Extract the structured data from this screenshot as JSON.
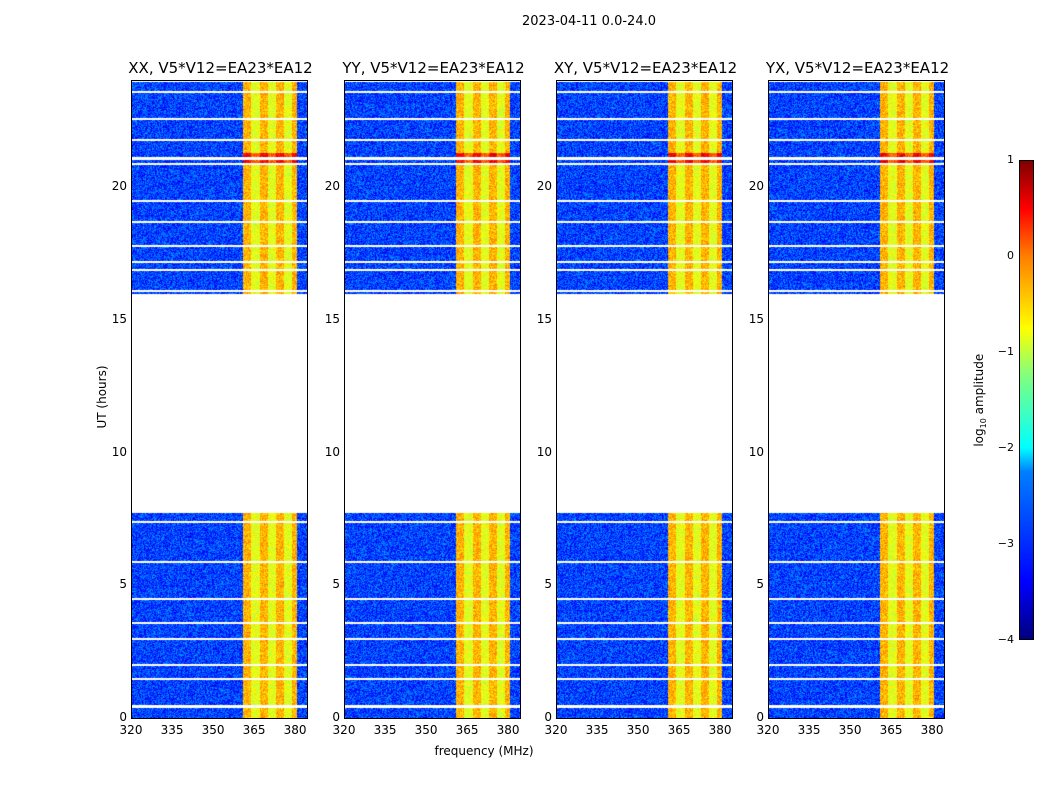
{
  "suptitle": "2023-04-11 0.0-24.0",
  "chart_data": {
    "type": "heatmap",
    "title": "2023-04-11 0.0-24.0",
    "xlabel": "frequency (MHz)",
    "ylabel": "UT (hours)",
    "panels": [
      {
        "title": "XX, V5*V12=EA23*EA12"
      },
      {
        "title": "YY, V5*V12=EA23*EA12"
      },
      {
        "title": "XY, V5*V12=EA23*EA12"
      },
      {
        "title": "YX, V5*V12=EA23*EA12"
      }
    ],
    "xlim": [
      320,
      384
    ],
    "ylim": [
      0,
      24
    ],
    "xticks": [
      "320",
      "335",
      "350",
      "365",
      "380"
    ],
    "xtick_values": [
      320,
      335,
      350,
      365,
      380
    ],
    "yticks": [
      "0",
      "5",
      "10",
      "15",
      "20"
    ],
    "ytick_values": [
      0,
      5,
      10,
      15,
      20
    ],
    "data_time_ranges": [
      [
        0,
        7.75
      ],
      [
        16.0,
        24
      ]
    ],
    "strong_rfi_band_mhz": [
      360.5,
      380
    ],
    "background_log_amplitude": -3.2,
    "rfi_log_amplitude": -0.8,
    "colorbar": {
      "label": "log10 amplitude",
      "range": [
        -4,
        1
      ],
      "ticks": [
        "1",
        "0",
        "−1",
        "−2",
        "−3",
        "−4"
      ],
      "tick_values": [
        1,
        0,
        -1,
        -2,
        -3,
        -4
      ],
      "colormap": "jet"
    }
  }
}
